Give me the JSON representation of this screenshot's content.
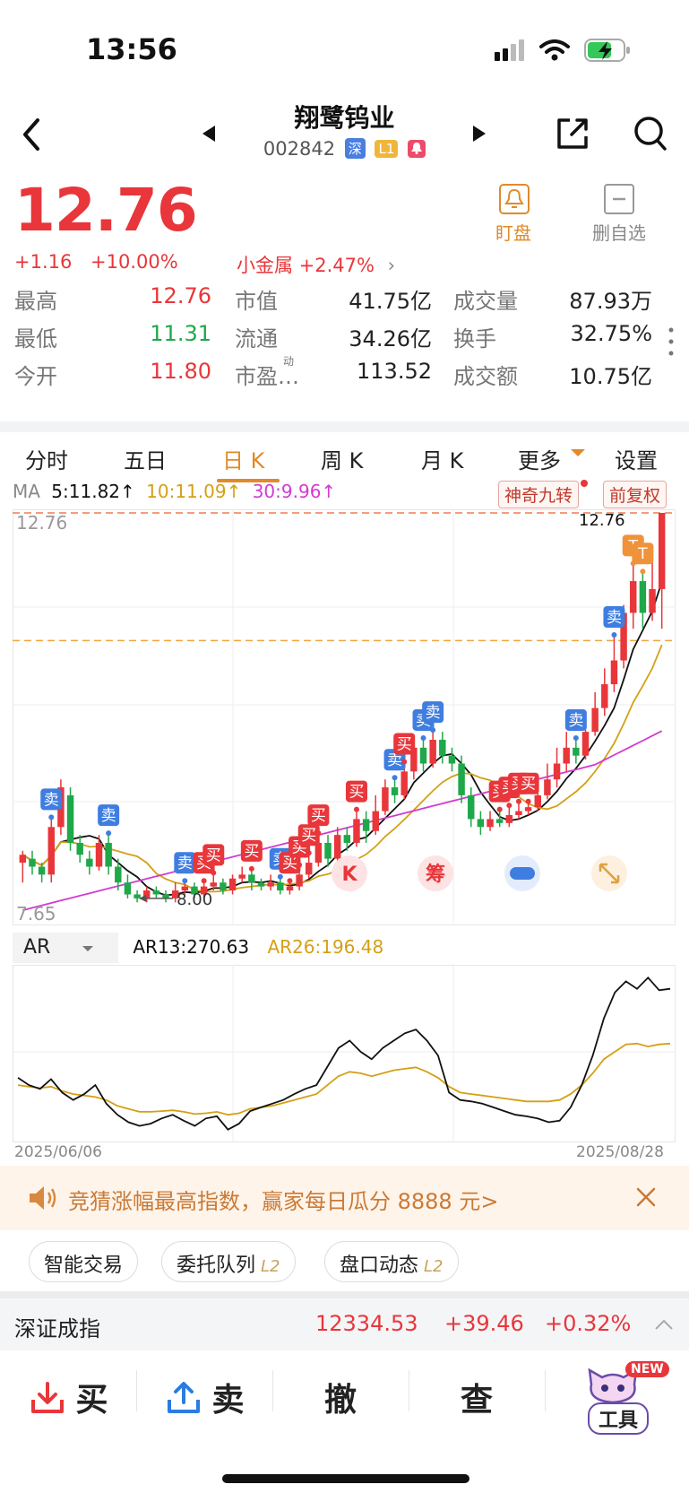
{
  "status": {
    "time": "13:56"
  },
  "header": {
    "title": "翔鹭钨业",
    "code": "002842",
    "tags": [
      "深",
      "L1"
    ],
    "tag_colors": [
      "#4a7fe0",
      "#f0b63a",
      "#ee4b6a"
    ],
    "watch_label": "盯盘",
    "remove_label": "删自选"
  },
  "quote": {
    "price": "12.76",
    "change": "+1.16",
    "change_pct": "+10.00%",
    "sector": "小金属 +2.47%",
    "stats": [
      [
        {
          "label": "最高",
          "value": "12.76",
          "color": "red"
        },
        {
          "label": "市值",
          "value": "41.75亿"
        },
        {
          "label": "成交量",
          "value": "87.93万"
        }
      ],
      [
        {
          "label": "最低",
          "value": "11.31",
          "color": "green"
        },
        {
          "label": "流通",
          "value": "34.26亿"
        },
        {
          "label": "换手",
          "value": "32.75%"
        }
      ],
      [
        {
          "label": "今开",
          "value": "11.80",
          "color": "red"
        },
        {
          "label": "市盈…",
          "value": "113.52",
          "sup": "动"
        },
        {
          "label": "成交额",
          "value": "10.75亿"
        }
      ]
    ]
  },
  "tabs": [
    "分时",
    "五日",
    "日 K",
    "周 K",
    "月 K",
    "更多",
    "设置"
  ],
  "active_tab": 2,
  "ma": {
    "label": "MA",
    "ma5": "5:11.82↑",
    "ma10": "10:11.09↑",
    "ma30": "30:9.96↑"
  },
  "chart_buttons": {
    "nine": "神奇九转",
    "adjust": "前复权"
  },
  "chart_data": {
    "type": "candlestick",
    "price_high_label": "12.76",
    "price_low_label": "7.65",
    "marker_label": "8.00",
    "last_label": "12.76",
    "ylim": [
      7.65,
      12.76
    ],
    "candles": [
      [
        8.35,
        8.45,
        8.1,
        8.5
      ],
      [
        8.4,
        8.3,
        8.2,
        8.5
      ],
      [
        8.3,
        8.2,
        8.1,
        8.35
      ],
      [
        8.2,
        8.8,
        8.1,
        8.9
      ],
      [
        8.8,
        9.3,
        8.7,
        9.4
      ],
      [
        9.2,
        8.6,
        8.5,
        9.3
      ],
      [
        8.6,
        8.45,
        8.35,
        8.7
      ],
      [
        8.4,
        8.3,
        8.2,
        8.5
      ],
      [
        8.3,
        8.6,
        8.25,
        8.7
      ],
      [
        8.6,
        8.3,
        8.2,
        8.7
      ],
      [
        8.3,
        8.1,
        8.0,
        8.4
      ],
      [
        8.1,
        7.95,
        7.9,
        8.2
      ],
      [
        7.95,
        7.9,
        7.85,
        8.0
      ],
      [
        7.9,
        8.0,
        7.85,
        8.05
      ],
      [
        8.0,
        7.95,
        7.9,
        8.05
      ],
      [
        7.95,
        7.9,
        7.85,
        8.0
      ],
      [
        7.9,
        8.0,
        7.85,
        8.1
      ],
      [
        8.0,
        8.05,
        7.95,
        8.1
      ],
      [
        8.05,
        7.95,
        7.9,
        8.1
      ],
      [
        7.95,
        8.05,
        7.9,
        8.1
      ],
      [
        8.05,
        8.1,
        8.0,
        8.2
      ],
      [
        8.1,
        8.0,
        7.95,
        8.15
      ],
      [
        8.0,
        8.15,
        7.95,
        8.2
      ],
      [
        8.15,
        8.2,
        8.1,
        8.3
      ],
      [
        8.2,
        8.1,
        8.0,
        8.25
      ],
      [
        8.1,
        8.05,
        8.0,
        8.15
      ],
      [
        8.05,
        8.1,
        8.0,
        8.2
      ],
      [
        8.1,
        8.0,
        7.95,
        8.15
      ],
      [
        8.0,
        8.05,
        7.95,
        8.1
      ],
      [
        8.05,
        8.2,
        8.0,
        8.3
      ],
      [
        8.2,
        8.35,
        8.15,
        8.45
      ],
      [
        8.35,
        8.6,
        8.3,
        8.7
      ],
      [
        8.6,
        8.4,
        8.3,
        8.7
      ],
      [
        8.4,
        8.7,
        8.35,
        8.8
      ],
      [
        8.7,
        8.6,
        8.5,
        8.8
      ],
      [
        8.6,
        8.9,
        8.55,
        9.0
      ],
      [
        8.9,
        8.75,
        8.6,
        9.0
      ],
      [
        8.75,
        9.0,
        8.7,
        9.2
      ],
      [
        9.0,
        9.3,
        8.95,
        9.4
      ],
      [
        9.3,
        9.2,
        9.1,
        9.4
      ],
      [
        9.2,
        9.5,
        9.15,
        9.6
      ],
      [
        9.5,
        9.8,
        9.4,
        9.9
      ],
      [
        9.8,
        9.6,
        9.5,
        9.9
      ],
      [
        9.6,
        9.9,
        9.55,
        10.0
      ],
      [
        9.9,
        9.7,
        9.6,
        10.0
      ],
      [
        9.7,
        9.6,
        9.5,
        9.8
      ],
      [
        9.6,
        9.2,
        9.1,
        9.7
      ],
      [
        9.2,
        8.9,
        8.8,
        9.3
      ],
      [
        8.9,
        8.8,
        8.7,
        9.0
      ],
      [
        8.8,
        8.9,
        8.75,
        9.0
      ],
      [
        8.9,
        8.85,
        8.8,
        9.0
      ],
      [
        8.85,
        8.95,
        8.8,
        9.05
      ],
      [
        8.95,
        9.0,
        8.9,
        9.1
      ],
      [
        9.0,
        9.05,
        8.95,
        9.1
      ],
      [
        9.05,
        9.2,
        9.0,
        9.3
      ],
      [
        9.2,
        9.4,
        9.15,
        9.6
      ],
      [
        9.4,
        9.6,
        9.3,
        9.8
      ],
      [
        9.6,
        9.8,
        9.5,
        10.0
      ],
      [
        9.8,
        9.7,
        9.6,
        9.9
      ],
      [
        9.7,
        10.0,
        9.65,
        10.1
      ],
      [
        10.0,
        10.3,
        9.95,
        10.5
      ],
      [
        10.3,
        10.6,
        10.2,
        10.8
      ],
      [
        10.6,
        10.9,
        10.5,
        11.2
      ],
      [
        10.9,
        11.5,
        10.8,
        11.6
      ],
      [
        11.5,
        11.9,
        11.3,
        12.1
      ],
      [
        11.9,
        11.5,
        11.3,
        12.0
      ],
      [
        11.5,
        11.8,
        11.4,
        12.2
      ],
      [
        11.8,
        12.76,
        11.3,
        12.76
      ]
    ],
    "markers": [
      {
        "i": 3,
        "type": "卖"
      },
      {
        "i": 9,
        "type": "卖"
      },
      {
        "i": 17,
        "type": "卖"
      },
      {
        "i": 19,
        "type": "买"
      },
      {
        "i": 20,
        "type": "买"
      },
      {
        "i": 24,
        "type": "买"
      },
      {
        "i": 27,
        "type": "卖"
      },
      {
        "i": 28,
        "type": "买"
      },
      {
        "i": 29,
        "type": "买"
      },
      {
        "i": 30,
        "type": "买"
      },
      {
        "i": 31,
        "type": "买"
      },
      {
        "i": 35,
        "type": "买"
      },
      {
        "i": 39,
        "type": "卖"
      },
      {
        "i": 40,
        "type": "买"
      },
      {
        "i": 42,
        "type": "卖"
      },
      {
        "i": 43,
        "type": "卖"
      },
      {
        "i": 50,
        "type": "买"
      },
      {
        "i": 51,
        "type": "买"
      },
      {
        "i": 52,
        "type": "买"
      },
      {
        "i": 53,
        "type": "买"
      },
      {
        "i": 58,
        "type": "卖"
      },
      {
        "i": 62,
        "type": "卖"
      },
      {
        "i": 64,
        "type": "T"
      },
      {
        "i": 65,
        "type": "T"
      }
    ]
  },
  "chart_icons": [
    "K",
    "筹"
  ],
  "ar": {
    "label": "AR",
    "ar13": "AR13:270.63",
    "ar26": "AR26:196.48"
  },
  "ar_data": {
    "ar13": [
      150,
      140,
      135,
      148,
      130,
      120,
      128,
      140,
      115,
      100,
      90,
      85,
      88,
      95,
      100,
      92,
      85,
      95,
      98,
      80,
      88,
      105,
      110,
      115,
      120,
      128,
      135,
      140,
      165,
      190,
      200,
      185,
      175,
      190,
      200,
      210,
      215,
      200,
      180,
      130,
      120,
      118,
      115,
      110,
      105,
      100,
      98,
      95,
      90,
      92,
      110,
      140,
      180,
      230,
      265,
      280,
      270,
      285,
      268,
      270
    ],
    "ar26": [
      140,
      138,
      136,
      138,
      132,
      128,
      126,
      124,
      120,
      112,
      108,
      104,
      104,
      105,
      106,
      104,
      101,
      102,
      104,
      100,
      102,
      108,
      110,
      112,
      116,
      120,
      124,
      128,
      140,
      152,
      158,
      156,
      152,
      156,
      160,
      162,
      164,
      158,
      150,
      138,
      130,
      128,
      126,
      124,
      122,
      120,
      118,
      118,
      118,
      120,
      128,
      140,
      156,
      175,
      185,
      195,
      196,
      192,
      195,
      196
    ]
  },
  "dates": {
    "start": "2025/06/06",
    "end": "2025/08/28"
  },
  "banner": {
    "text": "竞猜涨幅最高指数，赢家每日瓜分 8888 元>"
  },
  "chips": [
    {
      "label": "智能交易",
      "tag": ""
    },
    {
      "label": "委托队列",
      "tag": "L2"
    },
    {
      "label": "盘口动态",
      "tag": "L2"
    }
  ],
  "index": {
    "name": "深证成指",
    "value": "12334.53",
    "change": "+39.46",
    "pct": "+0.32%"
  },
  "bottom": {
    "buy": "买",
    "sell": "卖",
    "cancel": "撤",
    "query": "查",
    "tools": "工具",
    "new_badge": "NEW"
  }
}
